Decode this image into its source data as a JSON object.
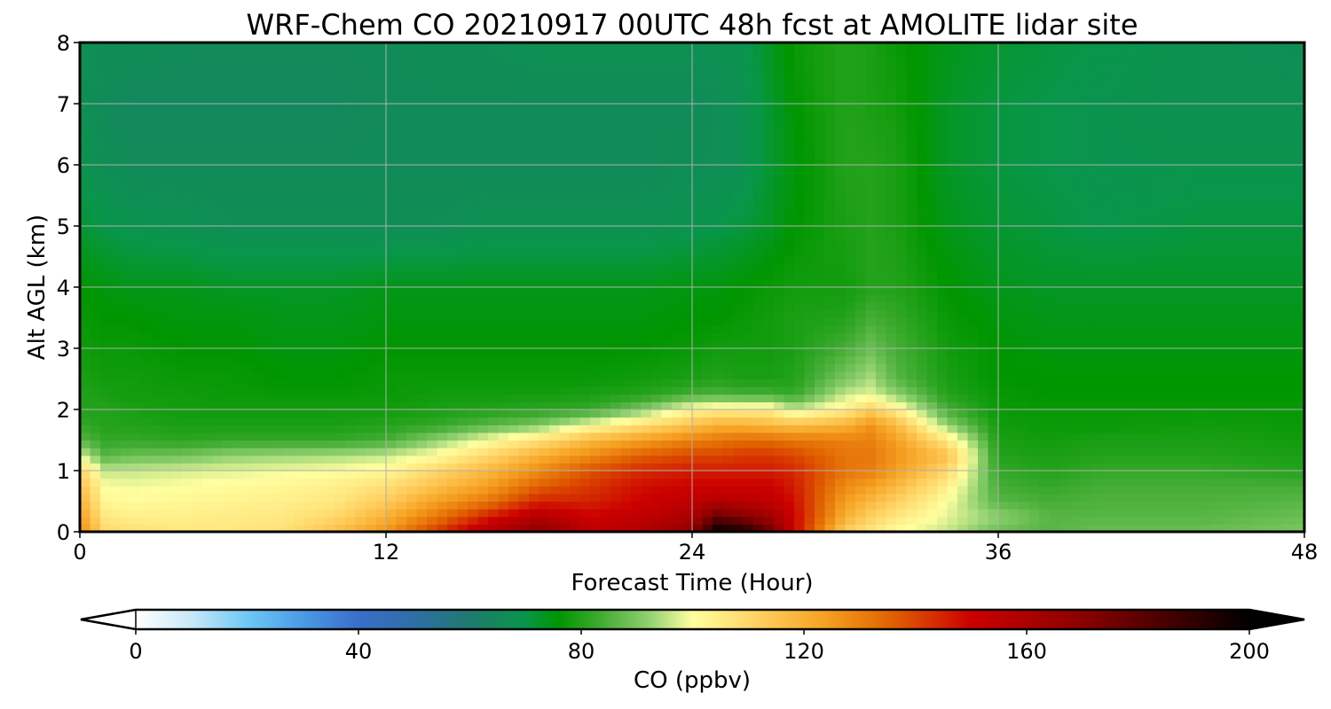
{
  "chart_data": {
    "type": "heatmap",
    "title": "WRF-Chem CO  20210917 00UTC 48h fcst at AMOLITE lidar site",
    "xlabel": "Forecast Time (Hour)",
    "ylabel": "Alt AGL (km)",
    "xlim": [
      0,
      48
    ],
    "ylim": [
      0,
      8
    ],
    "x_ticks": [
      "0",
      "12",
      "24",
      "36",
      "48"
    ],
    "y_ticks": [
      "0",
      "1",
      "2",
      "3",
      "4",
      "5",
      "6",
      "7",
      "8"
    ],
    "grid": true,
    "colorbar": {
      "label": "CO  (ppbv)",
      "range": [
        0,
        200
      ],
      "ticks": [
        "0",
        "40",
        "80",
        "120",
        "160",
        "200"
      ],
      "extend": "both",
      "orientation": "horizontal",
      "location": "bottom",
      "stops": [
        [
          0,
          "#ffffff"
        ],
        [
          10,
          "#c8e8f8"
        ],
        [
          20,
          "#6ec8f5"
        ],
        [
          30,
          "#4a9ae6"
        ],
        [
          40,
          "#3a6ec8"
        ],
        [
          50,
          "#2e6ea6"
        ],
        [
          60,
          "#1f7a6e"
        ],
        [
          70,
          "#08964a"
        ],
        [
          76,
          "#009600"
        ],
        [
          84,
          "#45ad35"
        ],
        [
          92,
          "#8fd070"
        ],
        [
          100,
          "#ffffa0"
        ],
        [
          112,
          "#ffd060"
        ],
        [
          124,
          "#f5a020"
        ],
        [
          136,
          "#e06000"
        ],
        [
          150,
          "#cc0000"
        ],
        [
          170,
          "#8a0000"
        ],
        [
          190,
          "#300000"
        ],
        [
          200,
          "#000000"
        ]
      ]
    },
    "x_hours": [
      0,
      1,
      2,
      4,
      6,
      8,
      10,
      12,
      14,
      16,
      18,
      20,
      22,
      24,
      25,
      26,
      27,
      28,
      30,
      31,
      32,
      34,
      36,
      38,
      40,
      44,
      48
    ],
    "z_km": [
      0,
      0.25,
      0.5,
      0.75,
      1,
      1.25,
      1.5,
      1.75,
      2,
      2.25,
      2.5,
      3,
      3.5,
      4,
      5,
      6,
      7,
      8
    ],
    "values_ppbv": [
      [
        128,
        124,
        120,
        116,
        110,
        98,
        86,
        82,
        80,
        80,
        79,
        78,
        77,
        76,
        72,
        69,
        68,
        68
      ],
      [
        110,
        106,
        102,
        100,
        96,
        86,
        82,
        80,
        80,
        79,
        78,
        77,
        76,
        75,
        70,
        67,
        66,
        67
      ],
      [
        108,
        104,
        101,
        99,
        96,
        88,
        82,
        80,
        79,
        78,
        78,
        77,
        76,
        74,
        69,
        66,
        65,
        67
      ],
      [
        106,
        104,
        102,
        100,
        97,
        89,
        81,
        79,
        78,
        78,
        77,
        76,
        75,
        74,
        68,
        66,
        65,
        66
      ],
      [
        106,
        105,
        103,
        101,
        98,
        92,
        82,
        79,
        78,
        77,
        77,
        76,
        75,
        73,
        67,
        66,
        65,
        66
      ],
      [
        108,
        106,
        104,
        102,
        99,
        93,
        82,
        79,
        78,
        77,
        76,
        75,
        74,
        73,
        67,
        66,
        65,
        66
      ],
      [
        116,
        110,
        106,
        104,
        100,
        94,
        82,
        79,
        78,
        77,
        76,
        75,
        74,
        73,
        67,
        66,
        65,
        66
      ],
      [
        126,
        120,
        113,
        108,
        102,
        96,
        84,
        80,
        78,
        77,
        77,
        76,
        75,
        74,
        67,
        66,
        66,
        66
      ],
      [
        142,
        132,
        124,
        116,
        110,
        101,
        92,
        82,
        79,
        78,
        77,
        76,
        75,
        74,
        67,
        66,
        66,
        67
      ],
      [
        158,
        146,
        132,
        124,
        118,
        110,
        100,
        86,
        80,
        78,
        77,
        76,
        75,
        74,
        68,
        66,
        66,
        67
      ],
      [
        170,
        158,
        145,
        136,
        128,
        120,
        108,
        90,
        81,
        78,
        77,
        76,
        75,
        74,
        68,
        66,
        66,
        68
      ],
      [
        155,
        150,
        145,
        142,
        138,
        128,
        118,
        100,
        82,
        79,
        77,
        76,
        75,
        74,
        68,
        66,
        66,
        68
      ],
      [
        158,
        154,
        150,
        148,
        144,
        136,
        124,
        108,
        90,
        80,
        78,
        76,
        75,
        74,
        68,
        66,
        66,
        68
      ],
      [
        170,
        160,
        154,
        150,
        146,
        140,
        130,
        116,
        102,
        84,
        79,
        77,
        76,
        75,
        69,
        67,
        66,
        68
      ],
      [
        200,
        178,
        158,
        150,
        146,
        140,
        132,
        120,
        104,
        85,
        80,
        78,
        76,
        75,
        70,
        67,
        67,
        68
      ],
      [
        195,
        172,
        156,
        150,
        146,
        142,
        134,
        120,
        104,
        84,
        79,
        78,
        77,
        76,
        71,
        68,
        68,
        69
      ],
      [
        178,
        164,
        154,
        150,
        146,
        142,
        134,
        118,
        104,
        84,
        79,
        78,
        78,
        77,
        73,
        72,
        72,
        73
      ],
      [
        150,
        150,
        148,
        146,
        144,
        140,
        132,
        116,
        96,
        82,
        80,
        79,
        79,
        78,
        76,
        75,
        76,
        77
      ],
      [
        112,
        120,
        124,
        128,
        132,
        132,
        130,
        120,
        104,
        96,
        90,
        84,
        80,
        78,
        79,
        80,
        80,
        80
      ],
      [
        106,
        112,
        118,
        124,
        130,
        132,
        130,
        126,
        112,
        98,
        94,
        88,
        84,
        80,
        80,
        80,
        79,
        79
      ],
      [
        100,
        106,
        112,
        118,
        124,
        126,
        124,
        118,
        104,
        92,
        86,
        84,
        82,
        80,
        79,
        79,
        78,
        77
      ],
      [
        96,
        98,
        100,
        104,
        110,
        116,
        106,
        92,
        84,
        80,
        79,
        78,
        77,
        76,
        74,
        73,
        73,
        74
      ],
      [
        88,
        92,
        86,
        84,
        82,
        80,
        79,
        78,
        77,
        77,
        76,
        76,
        75,
        74,
        72,
        71,
        71,
        72
      ],
      [
        86,
        86,
        84,
        82,
        80,
        79,
        78,
        77,
        77,
        76,
        76,
        75,
        74,
        73,
        71,
        70,
        70,
        71
      ],
      [
        88,
        86,
        85,
        84,
        82,
        80,
        79,
        77,
        77,
        76,
        76,
        75,
        74,
        73,
        70,
        69,
        69,
        70
      ],
      [
        88,
        86,
        85,
        84,
        82,
        80,
        79,
        78,
        77,
        76,
        76,
        75,
        74,
        73,
        71,
        69,
        68,
        68
      ],
      [
        90,
        88,
        86,
        84,
        80,
        79,
        78,
        77,
        77,
        76,
        76,
        75,
        74,
        73,
        71,
        69,
        68,
        67
      ]
    ]
  }
}
